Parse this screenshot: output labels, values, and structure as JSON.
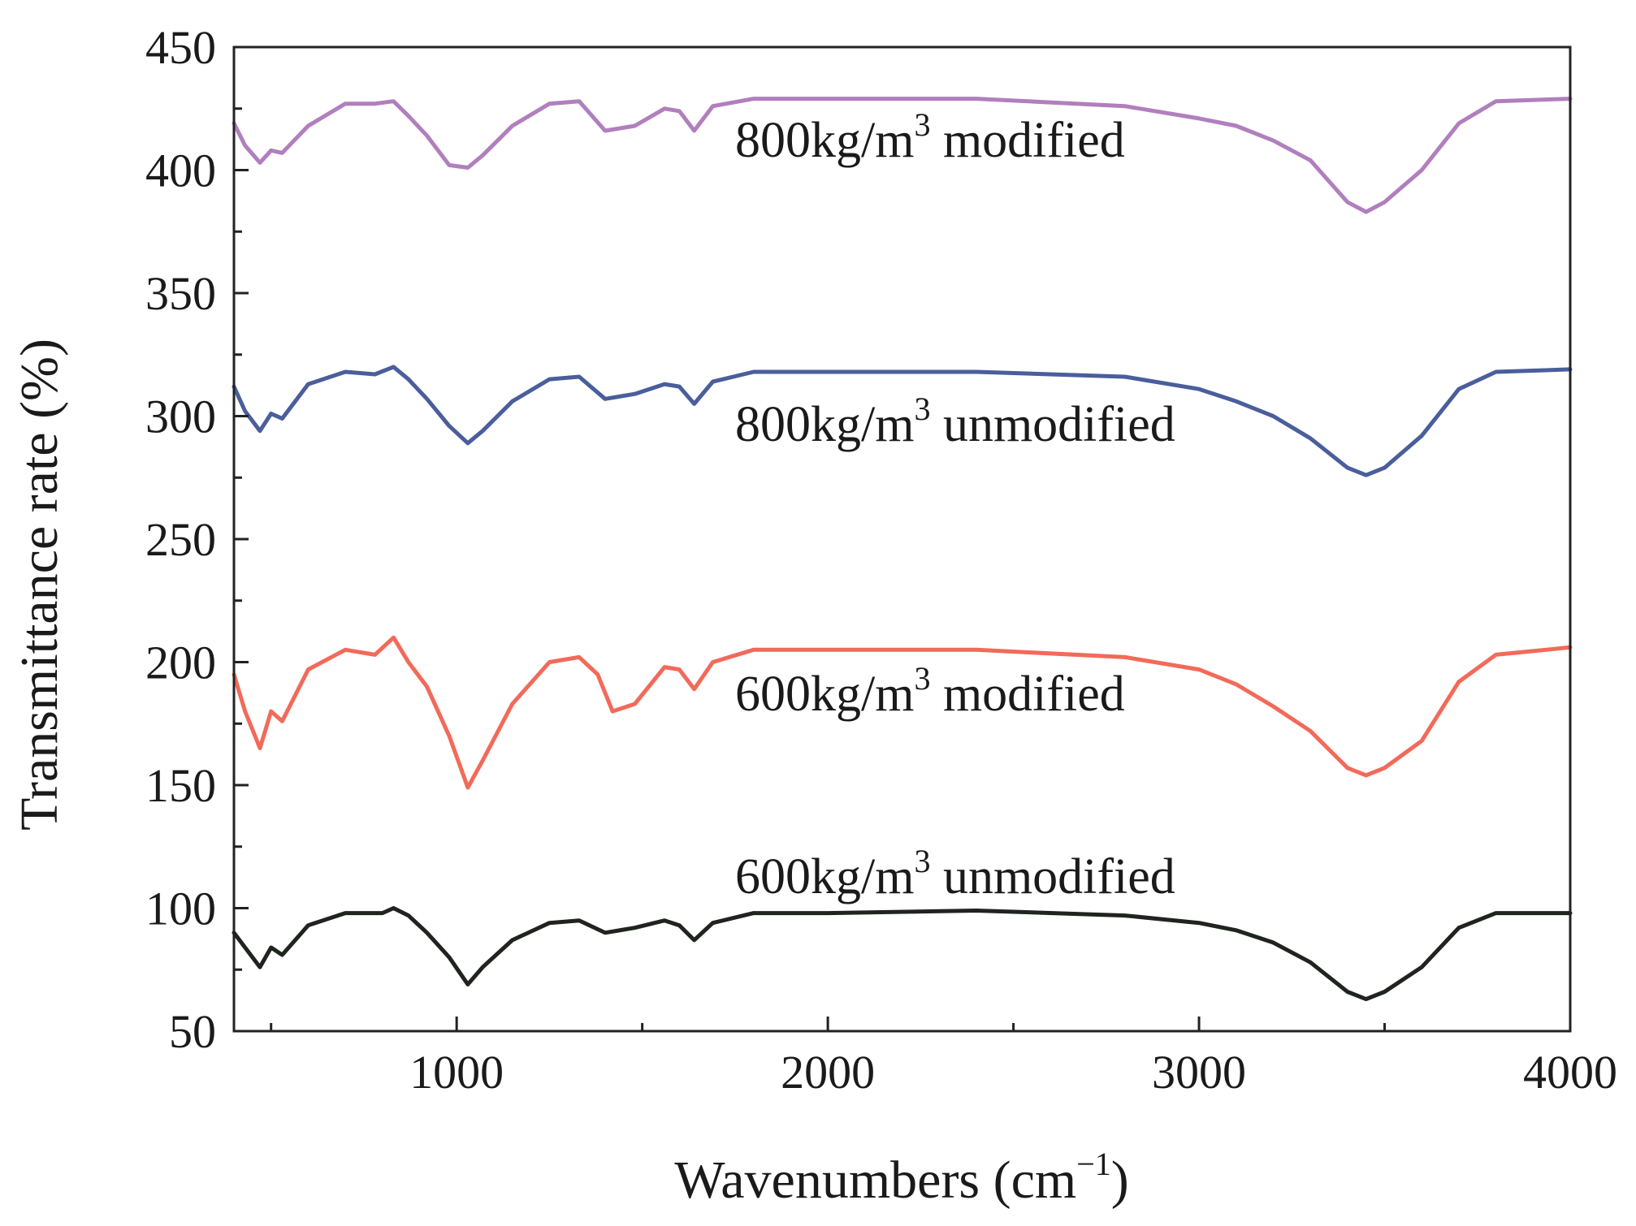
{
  "chart_data": {
    "type": "line",
    "xlabel": {
      "main": "Wavenumbers (cm",
      "sup": "−1",
      "tail": ")"
    },
    "ylabel": "Transmittance rate (%)",
    "xlim": [
      400,
      4000
    ],
    "ylim": [
      50,
      450
    ],
    "xticks": [
      1000,
      2000,
      3000,
      4000
    ],
    "xtick_labels": [
      "1000",
      "2000",
      "3000",
      "4000"
    ],
    "yticks": [
      50,
      100,
      150,
      200,
      250,
      300,
      350,
      400,
      450
    ],
    "ytick_labels": [
      "50",
      "100",
      "150",
      "200",
      "250",
      "300",
      "350",
      "400",
      "450"
    ],
    "grid": false,
    "series": [
      {
        "name": "600kg/m3 unmodified",
        "label_main": "600kg/m",
        "label_sup": "3",
        "label_tail": " unmodified",
        "color": "#1f241f",
        "points": [
          [
            400,
            90
          ],
          [
            430,
            84
          ],
          [
            470,
            76
          ],
          [
            500,
            84
          ],
          [
            530,
            81
          ],
          [
            600,
            93
          ],
          [
            700,
            98
          ],
          [
            800,
            98
          ],
          [
            830,
            100
          ],
          [
            870,
            97
          ],
          [
            920,
            90
          ],
          [
            980,
            80
          ],
          [
            1030,
            69
          ],
          [
            1070,
            76
          ],
          [
            1150,
            87
          ],
          [
            1250,
            94
          ],
          [
            1330,
            95
          ],
          [
            1400,
            90
          ],
          [
            1480,
            92
          ],
          [
            1560,
            95
          ],
          [
            1600,
            93
          ],
          [
            1640,
            87
          ],
          [
            1690,
            94
          ],
          [
            1800,
            98
          ],
          [
            2000,
            98
          ],
          [
            2400,
            99
          ],
          [
            2800,
            97
          ],
          [
            3000,
            94
          ],
          [
            3100,
            91
          ],
          [
            3200,
            86
          ],
          [
            3300,
            78
          ],
          [
            3400,
            66
          ],
          [
            3450,
            63
          ],
          [
            3500,
            66
          ],
          [
            3600,
            76
          ],
          [
            3700,
            92
          ],
          [
            3800,
            98
          ],
          [
            4000,
            98
          ]
        ]
      },
      {
        "name": "600kg/m3 modified",
        "label_main": "600kg/m",
        "label_sup": "3",
        "label_tail": " modified",
        "color": "#f26a5a",
        "points": [
          [
            400,
            195
          ],
          [
            430,
            180
          ],
          [
            470,
            165
          ],
          [
            500,
            180
          ],
          [
            530,
            176
          ],
          [
            600,
            197
          ],
          [
            700,
            205
          ],
          [
            780,
            203
          ],
          [
            830,
            210
          ],
          [
            870,
            200
          ],
          [
            920,
            190
          ],
          [
            980,
            170
          ],
          [
            1030,
            149
          ],
          [
            1070,
            160
          ],
          [
            1150,
            183
          ],
          [
            1250,
            200
          ],
          [
            1330,
            202
          ],
          [
            1380,
            195
          ],
          [
            1420,
            180
          ],
          [
            1480,
            183
          ],
          [
            1560,
            198
          ],
          [
            1600,
            197
          ],
          [
            1640,
            189
          ],
          [
            1690,
            200
          ],
          [
            1800,
            205
          ],
          [
            2000,
            205
          ],
          [
            2400,
            205
          ],
          [
            2800,
            202
          ],
          [
            3000,
            197
          ],
          [
            3100,
            191
          ],
          [
            3200,
            182
          ],
          [
            3300,
            172
          ],
          [
            3400,
            157
          ],
          [
            3450,
            154
          ],
          [
            3500,
            157
          ],
          [
            3600,
            168
          ],
          [
            3700,
            192
          ],
          [
            3800,
            203
          ],
          [
            4000,
            206
          ]
        ]
      },
      {
        "name": "800kg/m3 unmodified",
        "label_main": "800kg/m",
        "label_sup": "3",
        "label_tail": " unmodified",
        "color": "#4a5e9c",
        "points": [
          [
            400,
            312
          ],
          [
            430,
            302
          ],
          [
            470,
            294
          ],
          [
            500,
            301
          ],
          [
            530,
            299
          ],
          [
            600,
            313
          ],
          [
            700,
            318
          ],
          [
            780,
            317
          ],
          [
            830,
            320
          ],
          [
            870,
            315
          ],
          [
            920,
            307
          ],
          [
            980,
            296
          ],
          [
            1030,
            289
          ],
          [
            1070,
            294
          ],
          [
            1150,
            306
          ],
          [
            1250,
            315
          ],
          [
            1330,
            316
          ],
          [
            1400,
            307
          ],
          [
            1480,
            309
          ],
          [
            1560,
            313
          ],
          [
            1600,
            312
          ],
          [
            1640,
            305
          ],
          [
            1690,
            314
          ],
          [
            1800,
            318
          ],
          [
            2000,
            318
          ],
          [
            2400,
            318
          ],
          [
            2800,
            316
          ],
          [
            3000,
            311
          ],
          [
            3100,
            306
          ],
          [
            3200,
            300
          ],
          [
            3300,
            291
          ],
          [
            3400,
            279
          ],
          [
            3450,
            276
          ],
          [
            3500,
            279
          ],
          [
            3600,
            292
          ],
          [
            3700,
            311
          ],
          [
            3800,
            318
          ],
          [
            4000,
            319
          ]
        ]
      },
      {
        "name": "800kg/m3 modified",
        "label_main": "800kg/m",
        "label_sup": "3",
        "label_tail": " modified",
        "color": "#b17fbd",
        "points": [
          [
            400,
            419
          ],
          [
            430,
            410
          ],
          [
            470,
            403
          ],
          [
            500,
            408
          ],
          [
            530,
            407
          ],
          [
            600,
            418
          ],
          [
            700,
            427
          ],
          [
            780,
            427
          ],
          [
            830,
            428
          ],
          [
            870,
            422
          ],
          [
            920,
            414
          ],
          [
            980,
            402
          ],
          [
            1030,
            401
          ],
          [
            1070,
            406
          ],
          [
            1150,
            418
          ],
          [
            1250,
            427
          ],
          [
            1330,
            428
          ],
          [
            1400,
            416
          ],
          [
            1480,
            418
          ],
          [
            1560,
            425
          ],
          [
            1600,
            424
          ],
          [
            1640,
            416
          ],
          [
            1690,
            426
          ],
          [
            1800,
            429
          ],
          [
            2000,
            429
          ],
          [
            2400,
            429
          ],
          [
            2800,
            426
          ],
          [
            3000,
            421
          ],
          [
            3100,
            418
          ],
          [
            3200,
            412
          ],
          [
            3300,
            404
          ],
          [
            3400,
            387
          ],
          [
            3450,
            383
          ],
          [
            3500,
            387
          ],
          [
            3600,
            400
          ],
          [
            3700,
            419
          ],
          [
            3800,
            428
          ],
          [
            4000,
            429
          ]
        ]
      }
    ]
  }
}
